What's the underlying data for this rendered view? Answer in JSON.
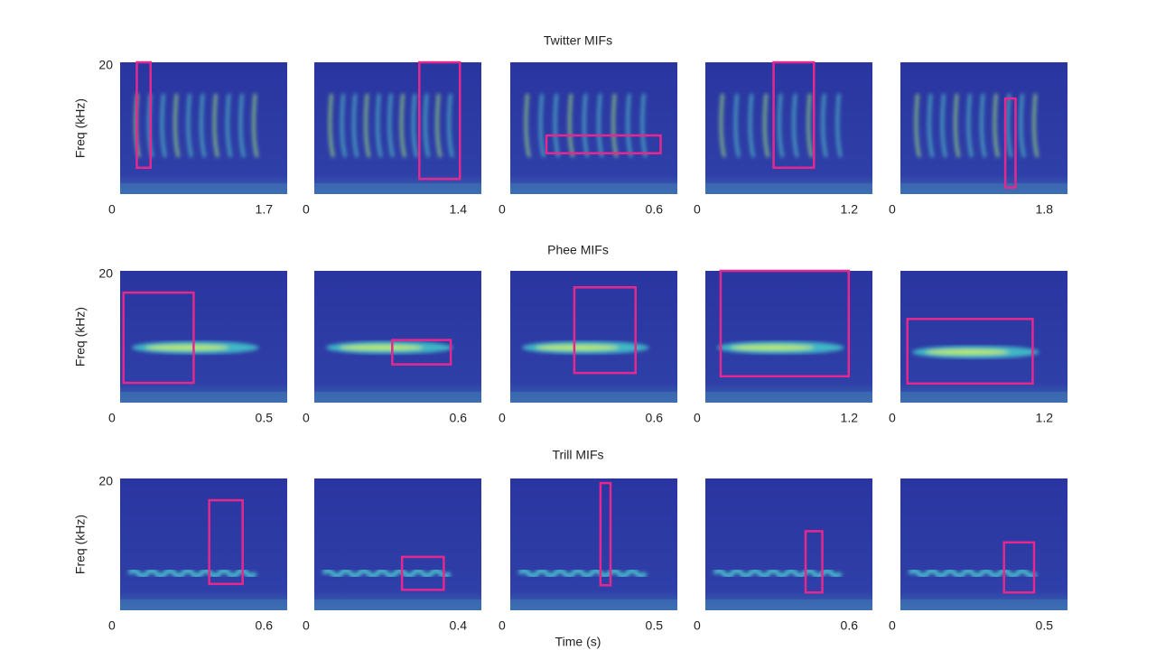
{
  "figure": {
    "xlabel": "Time (s)",
    "ylabel": "Freq (kHz)",
    "ylim": [
      0,
      20
    ],
    "yticks": [
      20
    ],
    "rows": [
      {
        "title": "Twitter MIFs",
        "panels": [
          {
            "xlim": [
              0,
              1.7
            ],
            "xticks": [
              0,
              1.7
            ],
            "box": [
              0.17,
              0.31,
              4,
              20
            ]
          },
          {
            "xlim": [
              0,
              1.4
            ],
            "xticks": [
              0,
              1.4
            ],
            "box": [
              0.88,
              1.22,
              2.3,
              20
            ]
          },
          {
            "xlim": [
              0,
              0.6
            ],
            "xticks": [
              0,
              0.6
            ],
            "box": [
              0.13,
              0.54,
              6.2,
              8.9
            ]
          },
          {
            "xlim": [
              0,
              1.2
            ],
            "xticks": [
              0,
              1.2
            ],
            "box": [
              0.49,
              0.78,
              4,
              20
            ]
          },
          {
            "xlim": [
              0,
              1.8
            ],
            "xticks": [
              0,
              1.8
            ],
            "box": [
              1.13,
              1.24,
              1,
              14.5
            ]
          }
        ]
      },
      {
        "title": "Phee MIFs",
        "panels": [
          {
            "xlim": [
              0,
              0.5
            ],
            "xticks": [
              0,
              0.5
            ],
            "box": [
              0.01,
              0.22,
              3,
              16.7
            ]
          },
          {
            "xlim": [
              0,
              0.6
            ],
            "xticks": [
              0,
              0.6
            ],
            "box": [
              0.28,
              0.49,
              5.8,
              9.5
            ]
          },
          {
            "xlim": [
              0,
              0.6
            ],
            "xticks": [
              0,
              0.6
            ],
            "box": [
              0.23,
              0.45,
              4.5,
              17.5
            ]
          },
          {
            "xlim": [
              0,
              1.2
            ],
            "xticks": [
              0,
              1.2
            ],
            "box": [
              0.11,
              1.03,
              4,
              20
            ]
          },
          {
            "xlim": [
              0,
              1.2
            ],
            "xticks": [
              0,
              1.2
            ],
            "box": [
              0.05,
              0.95,
              2.9,
              12.7
            ]
          }
        ]
      },
      {
        "title": "Trill MIFs",
        "panels": [
          {
            "xlim": [
              0,
              0.6
            ],
            "xticks": [
              0,
              0.6
            ],
            "box": [
              0.32,
              0.44,
              4,
              16.7
            ]
          },
          {
            "xlim": [
              0,
              0.4
            ],
            "xticks": [
              0,
              0.4
            ],
            "box": [
              0.21,
              0.31,
              3.1,
              8.1
            ]
          },
          {
            "xlim": [
              0,
              0.5
            ],
            "xticks": [
              0,
              0.5
            ],
            "box": [
              0.27,
              0.3,
              3.8,
              19.3
            ]
          },
          {
            "xlim": [
              0,
              0.6
            ],
            "xticks": [
              0,
              0.6
            ],
            "box": [
              0.36,
              0.42,
              2.7,
              12
            ]
          },
          {
            "xlim": [
              0,
              0.5
            ],
            "xticks": [
              0,
              0.5
            ],
            "box": [
              0.31,
              0.4,
              2.7,
              10.3
            ]
          }
        ]
      }
    ]
  }
}
